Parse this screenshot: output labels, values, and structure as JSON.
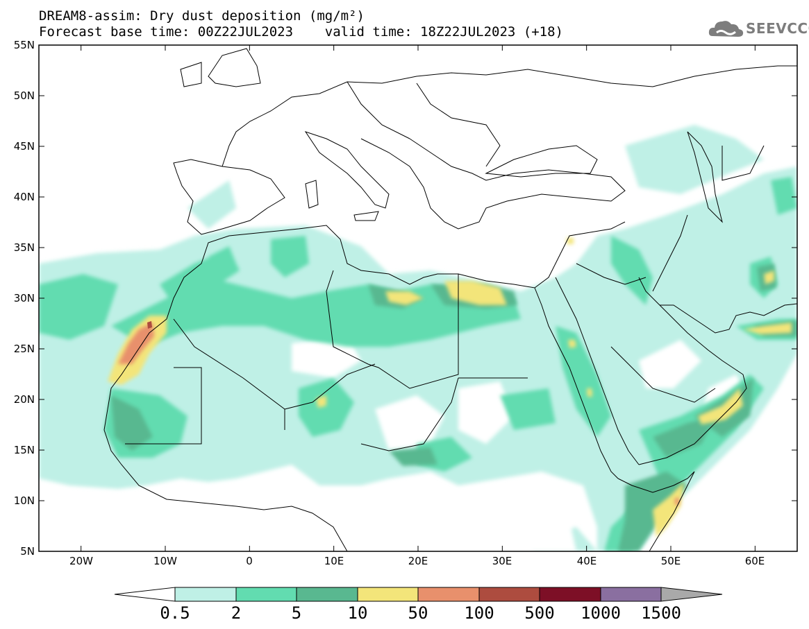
{
  "title_line1": "DREAM8-assim: Dry dust deposition (mg/m²)",
  "title_line2": "Forecast base time: 00Z22JUL2023    valid time: 18Z22JUL2023 (+18)",
  "logo_text": "SEEVCCC",
  "lat_ticks": [
    "55N",
    "50N",
    "45N",
    "40N",
    "35N",
    "30N",
    "25N",
    "20N",
    "15N",
    "10N",
    "5N"
  ],
  "lon_ticks": [
    "20W",
    "10W",
    "0",
    "10E",
    "20E",
    "30E",
    "40E",
    "50E",
    "60E"
  ],
  "colorbar": {
    "labels": [
      "0.5",
      "2",
      "5",
      "10",
      "50",
      "100",
      "500",
      "1000",
      "1500"
    ],
    "colors": [
      "#bff0e6",
      "#62dcb0",
      "#59b890",
      "#f3e57a",
      "#e8906c",
      "#ad4c3f",
      "#7d0f26",
      "#8a6fa0"
    ],
    "under_color": "#ffffff",
    "over_color": "#a9a9a9"
  },
  "map_data": {
    "projection": "equirectangular",
    "lon_range": [
      -25,
      65
    ],
    "lat_range": [
      5,
      55
    ],
    "variable": "Dry dust deposition",
    "units": "mg/m²",
    "model": "DREAM8-assim",
    "forecast_base_time": "00Z22JUL2023",
    "valid_time": "18Z22JUL2023",
    "lead_hours": 18
  }
}
